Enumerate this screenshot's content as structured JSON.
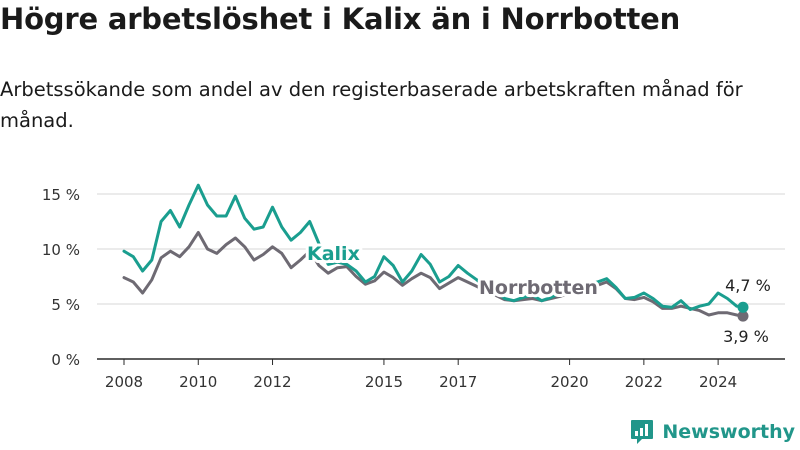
{
  "title": "Högre arbetslöshet i Kalix än i Norrbotten",
  "subtitle": "Arbetssökande som andel av den registerbaserade arbetskraften månad för månad.",
  "brand": {
    "name": "Newsworthy",
    "icon": "bar-chart-logo-icon",
    "color": "#21968a"
  },
  "chart_data": {
    "type": "line",
    "y_ticks": [
      "0 %",
      "5 %",
      "10 %",
      "15 %"
    ],
    "x_ticks": [
      "2008",
      "2010",
      "2012",
      "2015",
      "2017",
      "2020",
      "2022",
      "2024"
    ],
    "ylim": [
      0,
      17
    ],
    "xlim": [
      2007.3,
      2025.6
    ],
    "grid": true,
    "legend": "inline labels",
    "series": [
      {
        "name": "Kalix",
        "color": "#1a9e8f",
        "end_label": "4,7 %",
        "x": [
          2008.0,
          2008.25,
          2008.5,
          2008.75,
          2009.0,
          2009.25,
          2009.5,
          2009.75,
          2010.0,
          2010.25,
          2010.5,
          2010.75,
          2011.0,
          2011.25,
          2011.5,
          2011.75,
          2012.0,
          2012.25,
          2012.5,
          2012.75,
          2013.0,
          2013.25,
          2013.5,
          2013.75,
          2014.0,
          2014.25,
          2014.5,
          2014.75,
          2015.0,
          2015.25,
          2015.5,
          2015.75,
          2016.0,
          2016.25,
          2016.5,
          2016.75,
          2017.0,
          2017.25,
          2017.5,
          2017.75,
          2018.0,
          2018.25,
          2018.5,
          2018.75,
          2019.0,
          2019.25,
          2019.5,
          2019.75,
          2020.0,
          2020.25,
          2020.5,
          2020.75,
          2021.0,
          2021.25,
          2021.5,
          2021.75,
          2022.0,
          2022.25,
          2022.5,
          2022.75,
          2023.0,
          2023.25,
          2023.5,
          2023.75,
          2024.0,
          2024.25,
          2024.5,
          2024.67
        ],
        "y": [
          9.8,
          9.3,
          8.0,
          9.0,
          12.5,
          13.5,
          12.0,
          14.0,
          15.8,
          14.0,
          13.0,
          13.0,
          14.8,
          12.8,
          11.8,
          12.0,
          13.8,
          12.0,
          10.8,
          11.5,
          12.5,
          10.5,
          8.6,
          8.8,
          8.6,
          8.0,
          7.0,
          7.5,
          9.3,
          8.5,
          7.0,
          8.0,
          9.5,
          8.6,
          7.0,
          7.5,
          8.5,
          7.8,
          7.2,
          6.5,
          6.3,
          5.5,
          5.3,
          5.6,
          5.8,
          5.3,
          5.6,
          6.0,
          6.2,
          6.5,
          6.8,
          7.0,
          7.3,
          6.5,
          5.5,
          5.6,
          6.0,
          5.5,
          4.8,
          4.7,
          5.3,
          4.5,
          4.8,
          5.0,
          6.0,
          5.5,
          4.8,
          4.7
        ]
      },
      {
        "name": "Norrbotten",
        "color": "#6e6a73",
        "end_label": "3,9 %",
        "x": [
          2008.0,
          2008.25,
          2008.5,
          2008.75,
          2009.0,
          2009.25,
          2009.5,
          2009.75,
          2010.0,
          2010.25,
          2010.5,
          2010.75,
          2011.0,
          2011.25,
          2011.5,
          2011.75,
          2012.0,
          2012.25,
          2012.5,
          2012.75,
          2013.0,
          2013.25,
          2013.5,
          2013.75,
          2014.0,
          2014.25,
          2014.5,
          2014.75,
          2015.0,
          2015.25,
          2015.5,
          2015.75,
          2016.0,
          2016.25,
          2016.5,
          2016.75,
          2017.0,
          2017.25,
          2017.5,
          2017.75,
          2018.0,
          2018.25,
          2018.5,
          2018.75,
          2019.0,
          2019.25,
          2019.5,
          2019.75,
          2020.0,
          2020.25,
          2020.5,
          2020.75,
          2021.0,
          2021.25,
          2021.5,
          2021.75,
          2022.0,
          2022.25,
          2022.5,
          2022.75,
          2023.0,
          2023.25,
          2023.5,
          2023.75,
          2024.0,
          2024.25,
          2024.5,
          2024.67
        ],
        "y": [
          7.4,
          7.0,
          6.0,
          7.2,
          9.2,
          9.8,
          9.3,
          10.2,
          11.5,
          10.0,
          9.6,
          10.4,
          11.0,
          10.2,
          9.0,
          9.5,
          10.2,
          9.6,
          8.3,
          9.0,
          9.8,
          8.5,
          7.8,
          8.3,
          8.4,
          7.5,
          6.8,
          7.1,
          7.9,
          7.4,
          6.7,
          7.3,
          7.8,
          7.4,
          6.4,
          6.9,
          7.4,
          7.0,
          6.6,
          6.1,
          5.8,
          5.4,
          5.3,
          5.4,
          5.5,
          5.3,
          5.5,
          5.7,
          6.0,
          6.3,
          6.6,
          6.7,
          7.0,
          6.4,
          5.5,
          5.4,
          5.6,
          5.2,
          4.6,
          4.6,
          4.8,
          4.6,
          4.4,
          4.0,
          4.2,
          4.2,
          4.0,
          3.9
        ]
      }
    ]
  }
}
